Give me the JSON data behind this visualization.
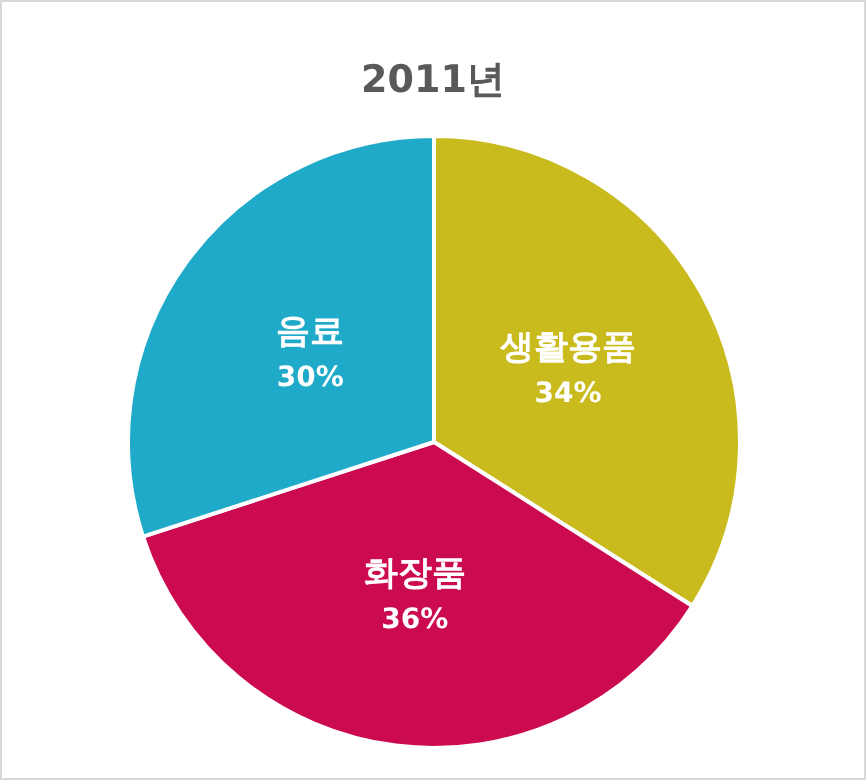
{
  "chart_data": {
    "type": "pie",
    "title": "2011년",
    "categories": [
      "생활용품",
      "화장품",
      "음료"
    ],
    "values": [
      34,
      36,
      30
    ],
    "colors": [
      "#c9bb1d",
      "#cc0a50",
      "#1eaac8"
    ],
    "value_labels": [
      "34%",
      "36%",
      "30%"
    ]
  }
}
